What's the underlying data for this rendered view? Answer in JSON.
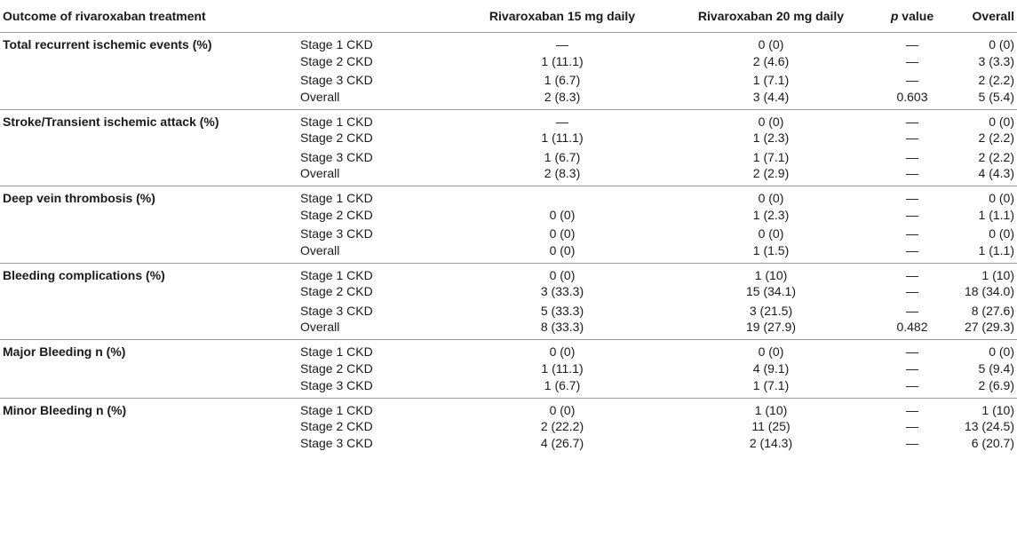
{
  "table": {
    "headers": {
      "outcome": "Outcome of rivaroxaban treatment",
      "stage": "",
      "riva15": "Rivaroxaban 15 mg daily",
      "riva20": "Rivaroxaban 20 mg daily",
      "p_italic": "p",
      "p_rest": " value",
      "overall": "Overall"
    },
    "groups": [
      {
        "outcome": "Total recurrent ischemic events (%)",
        "rows": [
          {
            "stage": "Stage 1 CKD",
            "r15": "—",
            "r20": "0 (0)",
            "p": "—",
            "overall": "0 (0)"
          },
          {
            "stage": "Stage 2 CKD",
            "r15": "1 (11.1)",
            "r20": "2 (4.6)",
            "p": "—",
            "overall": "3 (3.3)"
          },
          {
            "stage": "Stage 3 CKD",
            "r15": "1 (6.7)",
            "r20": "1 (7.1)",
            "p": "—",
            "overall": "2 (2.2)"
          },
          {
            "stage": "Overall",
            "r15": "2 (8.3)",
            "r20": "3 (4.4)",
            "p": "0.603",
            "overall": "5 (5.4)"
          }
        ]
      },
      {
        "outcome": "Stroke/Transient ischemic attack (%)",
        "rows": [
          {
            "stage": "Stage 1 CKD",
            "r15": "—",
            "r20": "0 (0)",
            "p": "—",
            "overall": "0 (0)"
          },
          {
            "stage": "Stage 2 CKD",
            "r15": "1 (11.1)",
            "r20": "1 (2.3)",
            "p": "—",
            "overall": "2 (2.2)"
          },
          {
            "stage": "Stage 3 CKD",
            "r15": "1 (6.7)",
            "r20": "1 (7.1)",
            "p": "—",
            "overall": "2 (2.2)"
          },
          {
            "stage": "Overall",
            "r15": "2 (8.3)",
            "r20": "2 (2.9)",
            "p": "—",
            "overall": "4 (4.3)"
          }
        ]
      },
      {
        "outcome": "Deep vein thrombosis (%)",
        "rows": [
          {
            "stage": "Stage 1 CKD",
            "r15": "",
            "r20": "0 (0)",
            "p": "—",
            "overall": "0 (0)"
          },
          {
            "stage": "Stage 2 CKD",
            "r15": "0 (0)",
            "r20": "1 (2.3)",
            "p": "—",
            "overall": "1 (1.1)"
          },
          {
            "stage": "Stage 3 CKD",
            "r15": "0 (0)",
            "r20": "0 (0)",
            "p": "—",
            "overall": "0 (0)"
          },
          {
            "stage": "Overall",
            "r15": "0 (0)",
            "r20": "1 (1.5)",
            "p": "—",
            "overall": "1 (1.1)"
          }
        ]
      },
      {
        "outcome": "Bleeding complications (%)",
        "rows": [
          {
            "stage": "Stage 1 CKD",
            "r15": "0 (0)",
            "r20": "1 (10)",
            "p": "—",
            "overall": "1 (10)"
          },
          {
            "stage": "Stage 2 CKD",
            "r15": "3 (33.3)",
            "r20": "15 (34.1)",
            "p": "—",
            "overall": "18 (34.0)"
          },
          {
            "stage": "Stage 3 CKD",
            "r15": "5 (33.3)",
            "r20": "3 (21.5)",
            "p": "—",
            "overall": "8 (27.6)"
          },
          {
            "stage": "Overall",
            "r15": "8 (33.3)",
            "r20": "19 (27.9)",
            "p": "0.482",
            "overall": "27 (29.3)"
          }
        ]
      },
      {
        "outcome": "Major Bleeding n (%)",
        "rows": [
          {
            "stage": "Stage 1 CKD",
            "r15": "0 (0)",
            "r20": "0 (0)",
            "p": "—",
            "overall": "0 (0)"
          },
          {
            "stage": "Stage 2 CKD",
            "r15": "1 (11.1)",
            "r20": "4 (9.1)",
            "p": "—",
            "overall": "5 (9.4)"
          },
          {
            "stage": "Stage 3 CKD",
            "r15": "1 (6.7)",
            "r20": "1 (7.1)",
            "p": "—",
            "overall": "2 (6.9)"
          }
        ]
      },
      {
        "outcome": "Minor Bleeding n (%)",
        "rows": [
          {
            "stage": "Stage 1 CKD",
            "r15": "0 (0)",
            "r20": "1 (10)",
            "p": "—",
            "overall": "1 (10)"
          },
          {
            "stage": "Stage 2 CKD",
            "r15": "2 (22.2)",
            "r20": "11 (25)",
            "p": "—",
            "overall": "13 (24.5)"
          },
          {
            "stage": "Stage 3 CKD",
            "r15": "4 (26.7)",
            "r20": "2 (14.3)",
            "p": "—",
            "overall": "6 (20.7)"
          }
        ]
      }
    ]
  }
}
